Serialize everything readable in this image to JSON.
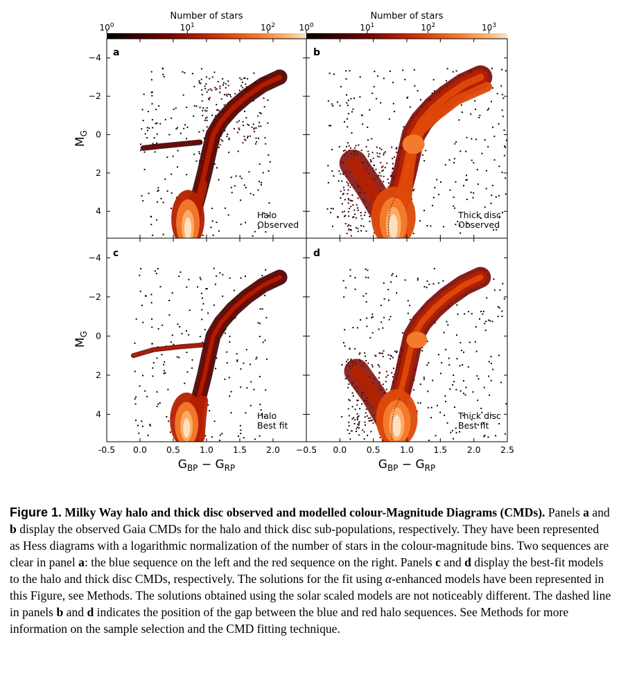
{
  "chart_data": {
    "type": "heatmap",
    "colorbars": [
      {
        "label": "Number of stars",
        "ticks": [
          "10^0",
          "10^1",
          "10^2"
        ],
        "scale": "log",
        "range": [
          1,
          300
        ]
      },
      {
        "label": "Number of stars",
        "ticks": [
          "10^0",
          "10^1",
          "10^2",
          "10^3"
        ],
        "scale": "log",
        "range": [
          1,
          2000
        ]
      }
    ],
    "colormap": [
      "#000000",
      "#3a0000",
      "#7a0500",
      "#b52000",
      "#de4a0a",
      "#f47a2c",
      "#fbac66",
      "#fde0c0"
    ],
    "xlabel": "G_BP − G_RP",
    "ylabel": "M_G",
    "xlim": [
      -0.5,
      2.5
    ],
    "ylim": [
      5.4,
      -5.0
    ],
    "y_inverted": true,
    "x_ticks_left": [
      "-0.5",
      "0.0",
      "0.5",
      "1.0",
      "1.5",
      "2.0"
    ],
    "x_ticks_right": [
      "−0.5",
      "0.0",
      "0.5",
      "1.0",
      "1.5",
      "2.0",
      "2.5"
    ],
    "y_ticks": [
      "−4",
      "−2",
      "0",
      "2",
      "4"
    ],
    "panels": [
      {
        "letter": "a",
        "label_line1": "Halo",
        "label_line2": "Observed",
        "sequences": [
          {
            "name": "blue sequence",
            "points": [
              [
                0.65,
                5.2
              ],
              [
                0.72,
                4.0
              ],
              [
                0.85,
                3.0
              ],
              [
                0.95,
                1.8
              ],
              [
                1.02,
                0.6
              ],
              [
                1.1,
                -0.2
              ],
              [
                1.25,
                -0.9
              ],
              [
                1.45,
                -1.6
              ],
              [
                1.65,
                -2.3
              ],
              [
                1.85,
                -2.9
              ]
            ]
          },
          {
            "name": "red sequence",
            "points": [
              [
                0.78,
                5.2
              ],
              [
                0.82,
                4.2
              ],
              [
                0.9,
                3.4
              ],
              [
                0.95,
                2.6
              ]
            ]
          },
          {
            "name": "horizontal branch",
            "points": [
              [
                0.05,
                0.7
              ],
              [
                0.3,
                0.6
              ],
              [
                0.6,
                0.5
              ],
              [
                0.9,
                0.4
              ]
            ]
          }
        ]
      },
      {
        "letter": "b",
        "label_line1": "Thick disc",
        "label_line2": "Observed",
        "gap_line": true
      },
      {
        "letter": "c",
        "label_line1": "Halo",
        "label_line2": "Best fit"
      },
      {
        "letter": "d",
        "label_line1": "Thick disc",
        "label_line2": "Best fit",
        "gap_line": true
      }
    ]
  },
  "caption": {
    "fig_label": "Figure 1.",
    "title": "Milky Way halo and thick disc observed and modelled colour-Magnitude Diagrams (CMDs).",
    "t1": " Panels ",
    "a": "a",
    "t2": " and ",
    "b": "b",
    "t3": " display the observed Gaia CMDs for the halo and thick disc sub-populations, respectively. They have been represented as Hess diagrams with a logarithmic normalization of the number of stars in the colour-magnitude bins. Two sequences are clear in panel ",
    "a2": "a",
    "t4": ": the blue sequence on the left and the red sequence on the right. Panels ",
    "c": "c",
    "t5": " and ",
    "d": "d",
    "t6": " display the best-fit models to the halo and thick disc CMDs, respectively. The solutions for the fit using ",
    "alpha": "α",
    "t7": "-enhanced models have been represented in this Figure, see Methods. The solutions obtained using the solar scaled models are not noticeably different. The dashed line in panels ",
    "b2": "b",
    "t8": " and ",
    "d2": "d",
    "t9": " indicates the position of the gap between the blue and red halo sequences. See Methods for more information on the sample selection and the CMD fitting technique."
  }
}
